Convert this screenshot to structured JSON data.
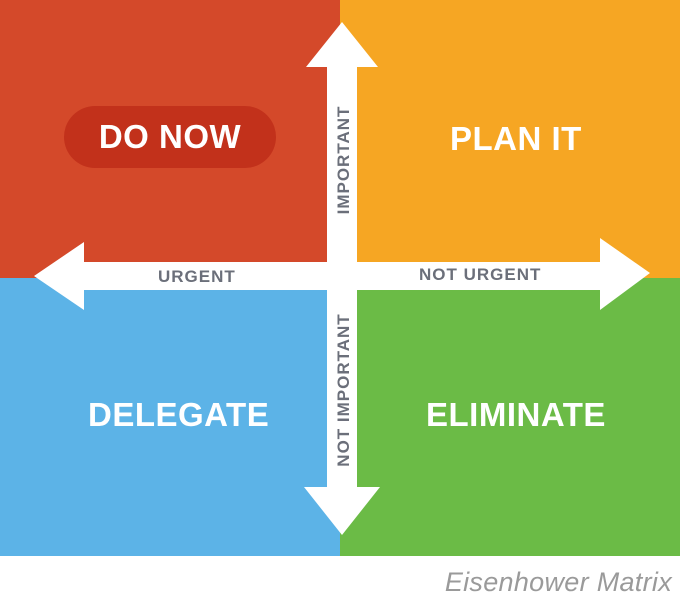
{
  "quadrants": {
    "do_now": {
      "label": "DO NOW",
      "color": "#d4492a",
      "pill_color": "#c2311b"
    },
    "plan_it": {
      "label": "PLAN IT",
      "color": "#f6a623"
    },
    "delegate": {
      "label": "DELEGATE",
      "color": "#5cb3e7"
    },
    "eliminate": {
      "label": "ELIMINATE",
      "color": "#6bbb46"
    }
  },
  "axes": {
    "urgent": "URGENT",
    "not_urgent": "NOT URGENT",
    "important": "IMPORTANT",
    "not_important": "NOT IMPORTANT"
  },
  "caption": "Eisenhower Matrix"
}
